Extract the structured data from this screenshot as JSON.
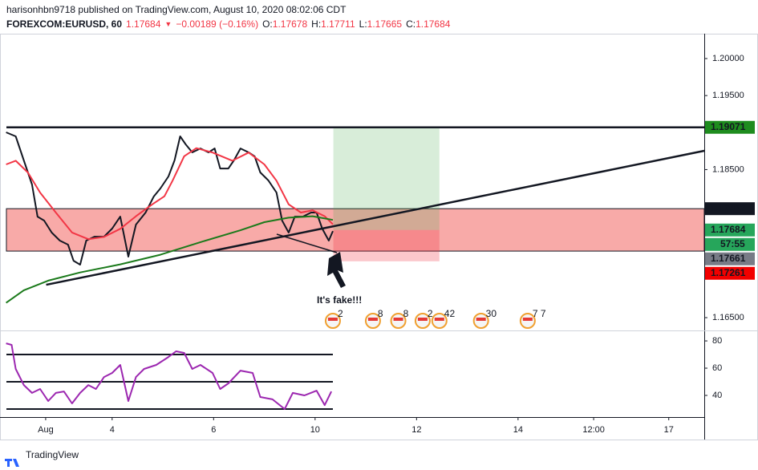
{
  "header": {
    "line1": "harisonhbn9718 published on TradingView.com, August 10, 2020 08:02:06 CDT",
    "symbol": "FOREXCOM:EURUSD, 60",
    "last": "1.17684",
    "arrow": "▼",
    "change": "−0.00189 (−0.16%)",
    "o_label": "O:",
    "o": "1.17678",
    "h_label": "H:",
    "h": "1.17711",
    "l_label": "L:",
    "l": "1.17665",
    "c_label": "C:",
    "c": "1.17684"
  },
  "chart_data": [
    {
      "type": "line",
      "xlim": [
        -1.21,
        12.67
      ],
      "ylim": [
        1.16327,
        1.20336
      ],
      "xticks": [
        {
          "value": -0.31,
          "label": "Aug"
        },
        {
          "value": 1,
          "label": "4"
        },
        {
          "value": 3,
          "label": "6"
        },
        {
          "value": 5,
          "label": "10"
        },
        {
          "value": 7,
          "label": "12"
        },
        {
          "value": 9,
          "label": "14"
        },
        {
          "value": 10.49,
          "label": "12:00"
        },
        {
          "value": 11.97,
          "label": "17"
        }
      ],
      "yticks": [
        {
          "value": 1.2,
          "label": "1.20000"
        },
        {
          "value": 1.195,
          "label": "1.19500"
        },
        {
          "value": 1.185,
          "label": "1.18500"
        },
        {
          "value": 1.165,
          "label": "1.16500"
        }
      ],
      "series": [
        {
          "color": "#131722",
          "x": [
            -1.09,
            -0.9,
            -0.74,
            -0.58,
            -0.47,
            -0.34,
            -0.19,
            -0.03,
            0.13,
            0.24,
            0.37,
            0.49,
            0.65,
            0.84,
            1.0,
            1.16,
            1.32,
            1.47,
            1.66,
            1.82,
            1.95,
            2.11,
            2.23,
            2.34,
            2.45,
            2.58,
            2.74,
            2.9,
            3.02,
            3.13,
            3.29,
            3.4,
            3.53,
            3.69,
            3.81,
            3.92,
            4.08,
            4.24,
            4.35,
            4.48,
            4.6,
            4.76,
            4.92,
            5.03,
            5.14,
            5.27,
            5.35
          ],
          "values": [
            1.19003,
            1.18949,
            1.18624,
            1.18299,
            1.17865,
            1.17811,
            1.17649,
            1.1754,
            1.17486,
            1.17269,
            1.17215,
            1.1754,
            1.17594,
            1.17594,
            1.17703,
            1.17865,
            1.17324,
            1.17757,
            1.1792,
            1.18136,
            1.18245,
            1.18407,
            1.18624,
            1.18949,
            1.18841,
            1.18732,
            1.18786,
            1.18732,
            1.18786,
            1.18515,
            1.18515,
            1.18624,
            1.18786,
            1.18732,
            1.18678,
            1.18461,
            1.18353,
            1.1819,
            1.17811,
            1.17649,
            1.17865,
            1.17865,
            1.1792,
            1.1792,
            1.17703,
            1.1754,
            1.1767
          ]
        },
        {
          "color": "#f23645",
          "x": [
            -1.09,
            -0.9,
            -0.66,
            -0.42,
            -0.11,
            0.21,
            0.53,
            0.84,
            1.16,
            1.47,
            1.79,
            2.03,
            2.19,
            2.42,
            2.66,
            2.98,
            3.37,
            3.69,
            4.0,
            4.24,
            4.48,
            4.72,
            4.95,
            5.19,
            5.35
          ],
          "values": [
            1.1857,
            1.1862,
            1.1846,
            1.1819,
            1.1792,
            1.1765,
            1.1756,
            1.1759,
            1.177,
            1.1787,
            1.1803,
            1.1814,
            1.1835,
            1.1868,
            1.1879,
            1.1873,
            1.1862,
            1.1873,
            1.1857,
            1.1835,
            1.1803,
            1.1792,
            1.1795,
            1.1787,
            1.1776
          ]
        },
        {
          "color": "#1b7a1b",
          "x": [
            -1.09,
            -0.74,
            -0.26,
            0.37,
            1.16,
            1.95,
            2.74,
            3.53,
            4.0,
            4.48,
            4.95,
            5.35
          ],
          "values": [
            1.167,
            1.1687,
            1.17,
            1.1711,
            1.1722,
            1.1735,
            1.1752,
            1.1768,
            1.1779,
            1.1785,
            1.1787,
            1.1782
          ]
        }
      ],
      "zone": [
        1.17399,
        1.17972
      ],
      "level": 1.19071,
      "trendline": {
        "x": [
          -0.3,
          12.67
        ],
        "values": [
          1.16944,
          1.18754
        ]
      },
      "position": {
        "x": [
          5.36,
          7.45
        ],
        "entry": 1.17684,
        "target": 1.19071,
        "stop": 1.17261
      },
      "price_labels": [
        {
          "value": 1.19071,
          "color": "#1e8c1e"
        },
        {
          "value": 1.17972,
          "color": "#131722"
        },
        {
          "value": 1.17684,
          "color": "#26a65b"
        },
        {
          "value": 1.17661,
          "color": "#787b86"
        },
        {
          "value": 1.17261,
          "color": "#f20000"
        }
      ],
      "countdown": "57:55",
      "annotation": {
        "text": "It's fake!!!",
        "color": "#e00000"
      },
      "events": [
        {
          "x": 5.35,
          "label": "2"
        },
        {
          "x": 6.14,
          "label": "8"
        },
        {
          "x": 6.64,
          "label": "8"
        },
        {
          "x": 7.12,
          "label": "2"
        },
        {
          "x": 7.45,
          "label": "42"
        },
        {
          "x": 8.27,
          "label": "30"
        },
        {
          "x": 9.19,
          "label": "7 7"
        }
      ]
    },
    {
      "type": "line",
      "ylim": [
        24.1,
        87.1
      ],
      "yticks": [
        80,
        60,
        40
      ],
      "levels": [
        70,
        50,
        30
      ],
      "series": [
        {
          "color": "#9c27b0",
          "x": [
            -1.09,
            -0.98,
            -0.9,
            -0.74,
            -0.58,
            -0.42,
            -0.26,
            -0.11,
            0.05,
            0.21,
            0.37,
            0.53,
            0.68,
            0.84,
            1.0,
            1.16,
            1.32,
            1.47,
            1.63,
            1.87,
            2.11,
            2.26,
            2.42,
            2.58,
            2.74,
            2.98,
            3.13,
            3.29,
            3.53,
            3.77,
            3.92,
            4.16,
            4.4,
            4.56,
            4.79,
            5.03,
            5.19,
            5.32
          ],
          "values": [
            78.2,
            77.1,
            59.4,
            47.6,
            41.8,
            44.7,
            35.9,
            41.8,
            42.9,
            34.1,
            41.8,
            47.6,
            44.7,
            53.5,
            56.5,
            62.4,
            35.9,
            53.5,
            59.4,
            62.4,
            68.2,
            72.4,
            71.2,
            59.4,
            62.4,
            56.5,
            44.7,
            48.8,
            58.2,
            56.5,
            38.8,
            37.1,
            30.0,
            41.8,
            40.0,
            43.5,
            32.9,
            42.9
          ]
        }
      ]
    }
  ],
  "footer": "TradingView"
}
